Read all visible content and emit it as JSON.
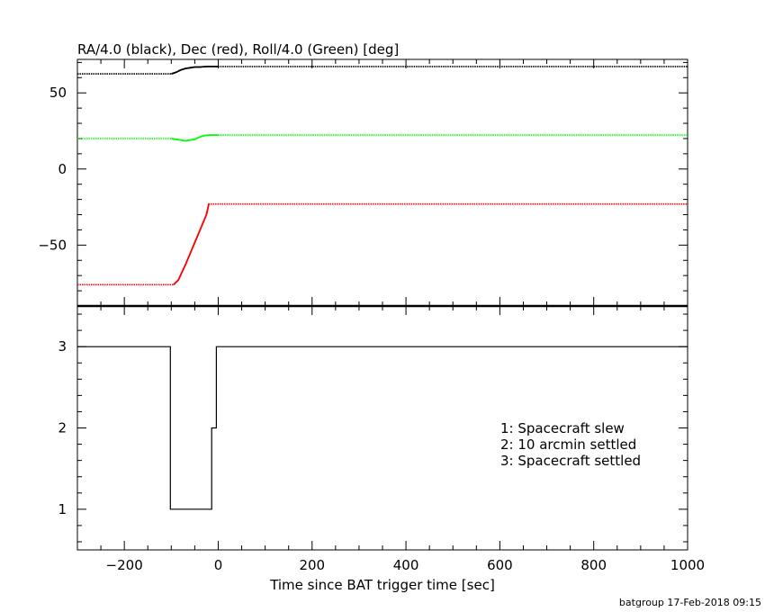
{
  "chart_data": [
    {
      "type": "line",
      "title": "RA/4.0 (black), Dec (red), Roll/4.0 (Green) [deg]",
      "xlim": [
        -300,
        1000
      ],
      "ylim": [
        -90,
        72
      ],
      "yticks": [
        -50,
        0,
        50
      ],
      "ytick_labels": [
        "−50",
        "0",
        "50"
      ],
      "series": [
        {
          "name": "RA/4.0",
          "color": "#000000",
          "x": [
            -300,
            -100,
            -90,
            -80,
            -70,
            -60,
            -50,
            -40,
            -30,
            -20,
            0,
            1000
          ],
          "y": [
            62.5,
            62.5,
            63.5,
            65,
            66,
            66.5,
            67,
            67,
            67.2,
            67.3,
            67.3,
            67.3
          ]
        },
        {
          "name": "Dec",
          "color": "#ff0000",
          "x": [
            -300,
            -95,
            -85,
            -70,
            -55,
            -40,
            -25,
            -20,
            1000
          ],
          "y": [
            -76,
            -76,
            -73,
            -63,
            -52,
            -41,
            -30,
            -23,
            -23
          ]
        },
        {
          "name": "Roll/4.0",
          "color": "#00ff00",
          "x": [
            -300,
            -100,
            -90,
            -80,
            -70,
            -60,
            -50,
            -40,
            -30,
            -20,
            0,
            1000
          ],
          "y": [
            20,
            20,
            19.5,
            19,
            18.5,
            19,
            19.5,
            21,
            22,
            22.3,
            22.3,
            22.3
          ]
        }
      ]
    },
    {
      "type": "line",
      "step": true,
      "xlabel": "Time since BAT trigger time [sec]",
      "xlim": [
        -300,
        1000
      ],
      "ylim": [
        0.5,
        3.5
      ],
      "xticks": [
        -200,
        0,
        200,
        400,
        600,
        800,
        1000
      ],
      "xtick_labels": [
        "−200",
        "0",
        "200",
        "400",
        "600",
        "800",
        "1000"
      ],
      "yticks": [
        1,
        2,
        3
      ],
      "ytick_labels": [
        "1",
        "2",
        "3"
      ],
      "annotations": [
        "1: Spacecraft slew",
        "2: 10 arcmin settled",
        "3: Spacecraft settled"
      ],
      "series": [
        {
          "color": "#000000",
          "x": [
            -300,
            -102,
            -102,
            -14,
            -14,
            -4,
            -4,
            1000
          ],
          "y": [
            3,
            3,
            1,
            1,
            2,
            2,
            3,
            3
          ]
        }
      ]
    }
  ],
  "footer": "batgroup 17-Feb-2018 09:15"
}
